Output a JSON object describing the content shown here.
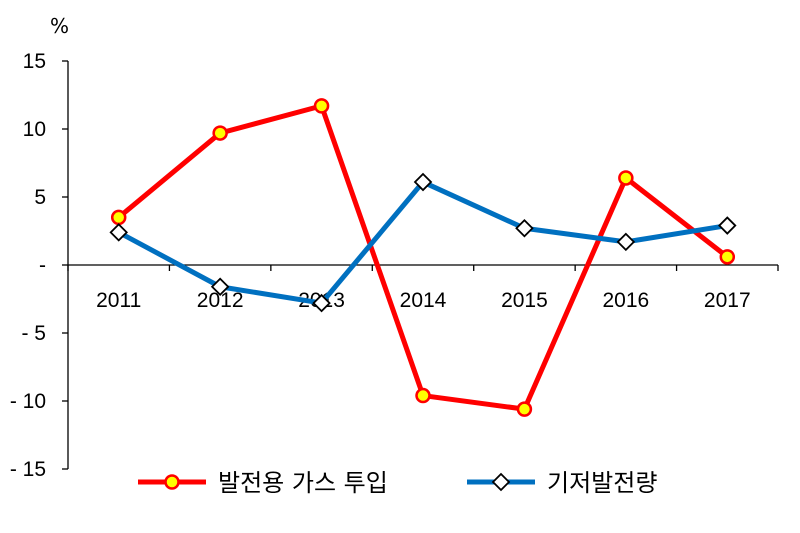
{
  "chart_data": {
    "type": "line",
    "unit": "%",
    "categories": [
      "2011",
      "2012",
      "2013",
      "2014",
      "2015",
      "2016",
      "2017"
    ],
    "ylim": [
      -15,
      15
    ],
    "yticks": [
      15,
      10,
      5,
      0,
      -5,
      -10,
      -15
    ],
    "ytick_labels": [
      "15",
      "10",
      "5",
      "-",
      "- 5",
      "- 10",
      "- 15"
    ],
    "grid": false,
    "legend_position": "bottom",
    "series": [
      {
        "name": "발전용 가스 투입",
        "values": [
          3.5,
          9.7,
          11.7,
          -9.6,
          -10.6,
          6.4,
          0.6
        ],
        "line_color": "#ff0000",
        "marker": "circle",
        "marker_fill": "#ffff00",
        "marker_stroke": "#ff0000"
      },
      {
        "name": "기저발전량",
        "values": [
          2.4,
          -1.6,
          -2.8,
          6.1,
          2.7,
          1.7,
          2.9
        ],
        "line_color": "#0070c0",
        "marker": "diamond",
        "marker_fill": "#ffffff",
        "marker_stroke": "#000000"
      }
    ]
  }
}
